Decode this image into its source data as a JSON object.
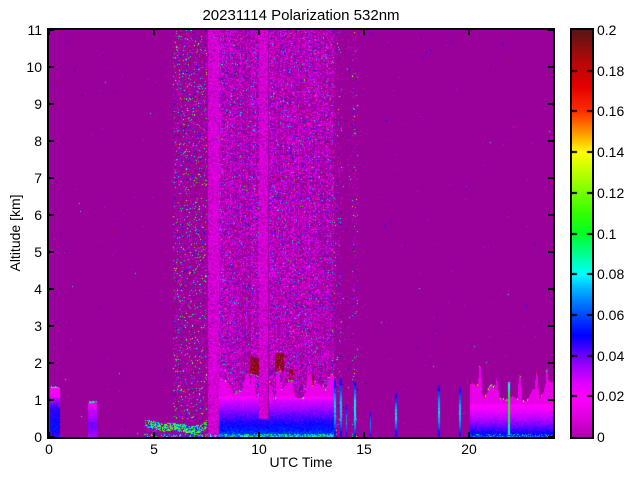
{
  "figure": {
    "background": "#FFFFFF"
  },
  "chart_data": {
    "type": "heatmap",
    "title": "20231114 Polarization 532nm",
    "xlabel": "UTC Time",
    "ylabel": "Altitude [km]",
    "xlim": [
      0,
      24
    ],
    "ylim": [
      0,
      11
    ],
    "grid": false,
    "x_ticks": {
      "values": [
        0,
        5,
        10,
        15,
        20
      ],
      "labels": [
        "0",
        "5",
        "10",
        "15",
        "20"
      ]
    },
    "y_ticks": {
      "values": [
        0,
        1,
        2,
        3,
        4,
        5,
        6,
        7,
        8,
        9,
        10,
        11
      ],
      "labels": [
        "0",
        "1",
        "2",
        "3",
        "4",
        "5",
        "6",
        "7",
        "8",
        "9",
        "10",
        "11"
      ]
    },
    "colorbar": {
      "min": 0,
      "max": 0.2,
      "tick_values": [
        0,
        0.02,
        0.04,
        0.06,
        0.08,
        0.1,
        0.12,
        0.14,
        0.16,
        0.18,
        0.2
      ],
      "tick_labels": [
        "0",
        "0.02",
        "0.04",
        "0.06",
        "0.08",
        "0.1",
        "0.12",
        "0.14",
        "0.16",
        "0.18",
        "0.2"
      ]
    },
    "background_color": "#9A009A",
    "colormap_stops": [
      [
        0.0,
        "#AE00AE"
      ],
      [
        0.05,
        "#E000E0"
      ],
      [
        0.1,
        "#FF00FF"
      ],
      [
        0.13,
        "#E300FF"
      ],
      [
        0.17,
        "#A800FF"
      ],
      [
        0.21,
        "#5A00FF"
      ],
      [
        0.25,
        "#0000FF"
      ],
      [
        0.29,
        "#0038FF"
      ],
      [
        0.33,
        "#0078FF"
      ],
      [
        0.37,
        "#00BCFF"
      ],
      [
        0.4,
        "#00FFFF"
      ],
      [
        0.45,
        "#00FF90"
      ],
      [
        0.5,
        "#00FF28"
      ],
      [
        0.55,
        "#30FF00"
      ],
      [
        0.62,
        "#90FF00"
      ],
      [
        0.7,
        "#FFFF00"
      ],
      [
        0.75,
        "#FF9400"
      ],
      [
        0.8,
        "#FF3000"
      ],
      [
        0.86,
        "#E60000"
      ],
      [
        0.92,
        "#B80808"
      ],
      [
        1.0,
        "#5C1414"
      ]
    ],
    "render": {
      "seed": 1337,
      "mottle_stripes": [
        {
          "x0": 7.55,
          "x1": 8.1,
          "v_min": 0.005,
          "v_max": 0.014,
          "density": 0.85
        },
        {
          "x0": 10.0,
          "x1": 10.45,
          "v_min": 0.005,
          "v_max": 0.014,
          "density": 0.85
        }
      ],
      "speckle_bands": [
        {
          "x0": 5.9,
          "x1": 7.5,
          "a0": 0.5,
          "a1": 11,
          "density": 0.13,
          "col_var": 0.5,
          "palette": [
            [
              0.012,
              26
            ],
            [
              0.02,
              8
            ],
            [
              0.035,
              8
            ],
            [
              0.05,
              10
            ],
            [
              0.065,
              8
            ],
            [
              0.08,
              9
            ],
            [
              0.095,
              8
            ],
            [
              0.11,
              7
            ],
            [
              0.135,
              6
            ],
            [
              0.16,
              4
            ],
            [
              0.185,
              4
            ],
            [
              0.2,
              3
            ]
          ]
        },
        {
          "x0": 8.1,
          "x1": 13.55,
          "a0": 0,
          "a1": 11,
          "density": 0.42,
          "col_var": 0.9,
          "hole": [
            10.0,
            10.45
          ],
          "palette": [
            [
              0.01,
              50
            ],
            [
              0.015,
              28
            ],
            [
              0.03,
              7
            ],
            [
              0.045,
              6
            ],
            [
              0.06,
              4
            ],
            [
              0.075,
              2
            ],
            [
              0.09,
              1.2
            ],
            [
              0.11,
              0.8
            ],
            [
              0.16,
              0.5
            ],
            [
              0.19,
              0.5
            ]
          ]
        },
        {
          "x0": 13.55,
          "x1": 13.95,
          "a0": 0,
          "a1": 11,
          "density": 0.09,
          "col_var": 0.6,
          "palette": [
            [
              0.012,
              20
            ],
            [
              0.03,
              6
            ],
            [
              0.05,
              6
            ],
            [
              0.07,
              4
            ],
            [
              0.09,
              3
            ],
            [
              0.13,
              2
            ],
            [
              0.17,
              2
            ],
            [
              0.2,
              1
            ]
          ]
        },
        {
          "x0": 13.95,
          "x1": 14.45,
          "a0": 0,
          "a1": 11,
          "density": 0.015,
          "col_var": 0.3,
          "palette": [
            [
              0.012,
              10
            ],
            [
              0.05,
              3
            ],
            [
              0.08,
              2
            ],
            [
              0.17,
              1
            ]
          ]
        },
        {
          "x0": 14.45,
          "x1": 14.72,
          "a0": 0,
          "a1": 11,
          "density": 0.07,
          "col_var": 0.4,
          "palette": [
            [
              0.012,
              14
            ],
            [
              0.03,
              5
            ],
            [
              0.05,
              5
            ],
            [
              0.08,
              4
            ],
            [
              0.1,
              3
            ],
            [
              0.14,
              2
            ],
            [
              0.17,
              2
            ],
            [
              0.2,
              1.5
            ]
          ]
        },
        {
          "x0": 0,
          "x1": 24,
          "a0": 0,
          "a1": 11,
          "density": 0.0012,
          "col_var": 0,
          "palette": [
            [
              0.012,
              5
            ],
            [
              0.05,
              2
            ],
            [
              0.08,
              1
            ],
            [
              0.17,
              0.5
            ]
          ]
        }
      ],
      "wavy_layer": {
        "x0": 4.55,
        "x1": 7.52,
        "center": 0.3,
        "amp": 0.13,
        "thickness": 0.2,
        "density": 0.8,
        "below_speck_density": 0.06,
        "palette": [
          [
            0.09,
            3
          ],
          [
            0.11,
            2
          ],
          [
            0.07,
            2
          ],
          [
            0.05,
            1
          ],
          [
            0.13,
            1
          ],
          [
            0.16,
            0.3
          ]
        ]
      },
      "aerosols": [
        {
          "x0": 0.07,
          "x1": 0.52,
          "top_base": 1.25,
          "top_amp": 0.12,
          "pink_v": 0.02,
          "profile": [
            [
              0,
              0.045
            ],
            [
              0.3,
              0.052
            ],
            [
              0.8,
              0.045
            ],
            [
              1.1,
              0.028
            ]
          ],
          "rim_density": 0.85,
          "rim_vals": [
            0.08,
            0.1,
            0.09
          ]
        },
        {
          "x0": 1.88,
          "x1": 2.28,
          "top_base": 1.0,
          "top_amp": 0.1,
          "pink_v": 0.018,
          "profile": [
            [
              0,
              0.032
            ],
            [
              0.3,
              0.04
            ],
            [
              0.7,
              0.03
            ],
            [
              0.95,
              0.02
            ]
          ],
          "rim_density": 0.75,
          "rim_vals": [
            0.085,
            0.1
          ]
        },
        {
          "x0": 8.1,
          "x1": 13.55,
          "top_base": 1.3,
          "top_amp": 0.45,
          "pink_v": 0.013,
          "hole": [
            10.0,
            10.45
          ],
          "hole_alt": 0.5,
          "profile": [
            [
              0,
              0.075
            ],
            [
              0.08,
              0.058
            ],
            [
              0.5,
              0.044
            ],
            [
              1.0,
              0.027
            ],
            [
              1.12,
              0.016
            ]
          ],
          "peaks": [
            [
              9.7,
              2.1
            ],
            [
              10.3,
              1.6
            ],
            [
              10.9,
              2.2
            ],
            [
              11.5,
              1.9
            ],
            [
              12.3,
              1.75
            ],
            [
              13.0,
              1.5
            ]
          ],
          "rim_density": 0.3,
          "rim_vals": [
            0.08,
            0.1,
            0.13,
            0.17,
            0.2
          ]
        },
        {
          "x0": 20.05,
          "x1": 23.98,
          "top_base": 1.25,
          "top_amp": 0.28,
          "pink_v": 0.013,
          "profile": [
            [
              0,
              0.06
            ],
            [
              0.08,
              0.05
            ],
            [
              0.5,
              0.032
            ],
            [
              0.9,
              0.018
            ]
          ],
          "peaks": [
            [
              20.5,
              1.95
            ],
            [
              21.3,
              1.6
            ],
            [
              22.4,
              1.7
            ],
            [
              23.2,
              1.75
            ],
            [
              23.7,
              1.85
            ]
          ],
          "rim_density": 0.5,
          "rim_vals": [
            0.1,
            0.12,
            0.14,
            0.17,
            0.2
          ]
        }
      ],
      "red_caps": [
        {
          "x0": 9.55,
          "x1": 10.0,
          "alt0": 1.72,
          "alt1": 2.18
        },
        {
          "x0": 10.75,
          "x1": 11.2,
          "alt0": 1.78,
          "alt1": 2.25
        },
        {
          "x0": 11.42,
          "x1": 11.6,
          "alt0": 1.55,
          "alt1": 1.82
        },
        {
          "x0": 12.5,
          "x1": 12.64,
          "alt0": 1.45,
          "alt1": 1.66
        }
      ],
      "vlines": [
        {
          "x": 13.58,
          "w": 2,
          "alt": 1.55,
          "base_v": 0.045
        },
        {
          "x": 13.88,
          "w": 2,
          "alt": 1.6,
          "base_v": 0.045
        },
        {
          "x": 14.12,
          "w": 1,
          "alt": 0.9,
          "base_v": 0.04
        },
        {
          "x": 14.5,
          "w": 2,
          "alt": 1.5,
          "base_v": 0.05
        },
        {
          "x": 15.3,
          "w": 1,
          "alt": 0.7,
          "base_v": 0.04
        },
        {
          "x": 16.48,
          "w": 2,
          "alt": 1.2,
          "base_v": 0.045,
          "top_v": 0.19
        },
        {
          "x": 18.52,
          "w": 2,
          "alt": 1.4,
          "base_v": 0.045,
          "top_v": 0.19
        },
        {
          "x": 19.5,
          "w": 2,
          "alt": 1.35,
          "base_v": 0.045,
          "top_v": 0.19
        },
        {
          "x": 21.88,
          "w": 2,
          "alt": 1.5,
          "base_v": 0.075
        }
      ],
      "ground_lines": [
        {
          "x0": 4.5,
          "x1": 8.1,
          "density": 0.35,
          "vals": [
            0.08,
            0.1,
            0.06
          ]
        },
        {
          "x0": 8.1,
          "x1": 13.6,
          "density": 0.6,
          "vals": [
            0.08,
            0.1,
            0.09,
            0.06
          ]
        },
        {
          "x0": 20.05,
          "x1": 24.0,
          "density": 0.35,
          "vals": [
            0.07,
            0.09,
            0.05
          ]
        }
      ]
    }
  }
}
